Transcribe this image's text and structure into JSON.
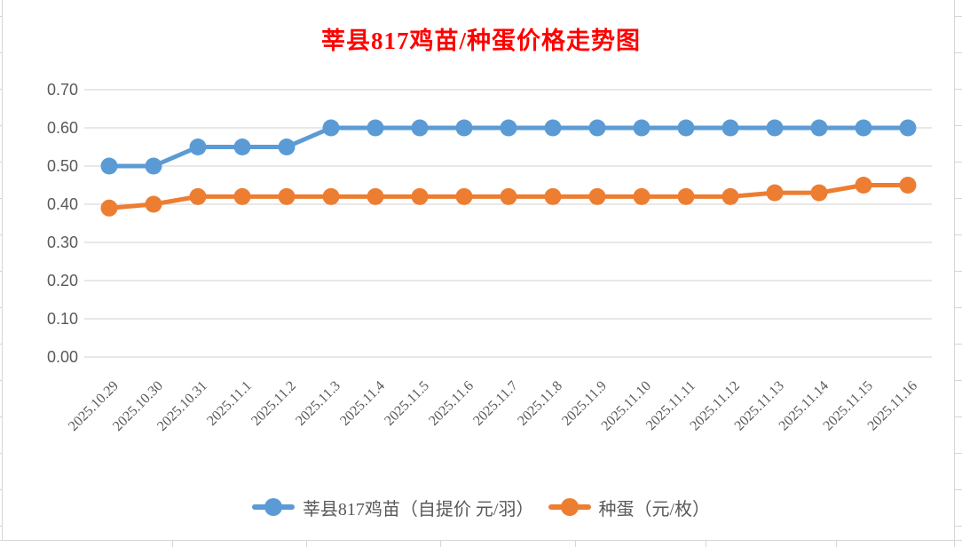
{
  "title": "莘县817鸡苗/种蛋价格走势图",
  "colors": {
    "title": "#FF0000",
    "axis_text": "#595959",
    "gridline": "#D9D9D9",
    "sheet_line": "#D6D6D6",
    "background": "#FFFFFF"
  },
  "chart_data": {
    "type": "line",
    "title": "莘县817鸡苗/种蛋价格走势图",
    "categories": [
      "2025.10.29",
      "2025.10.30",
      "2025.10.31",
      "2025.11.1",
      "2025.11.2",
      "2025.11.3",
      "2025.11.4",
      "2025.11.5",
      "2025.11.6",
      "2025.11.7",
      "2025.11.8",
      "2025.11.9",
      "2025.11.10",
      "2025.11.11",
      "2025.11.12",
      "2025.11.13",
      "2025.11.14",
      "2025.11.15",
      "2025.11.16"
    ],
    "series": [
      {
        "name": "莘县817鸡苗（自提价 元/羽）",
        "color": "#5B9BD5",
        "values": [
          0.5,
          0.5,
          0.55,
          0.55,
          0.55,
          0.6,
          0.6,
          0.6,
          0.6,
          0.6,
          0.6,
          0.6,
          0.6,
          0.6,
          0.6,
          0.6,
          0.6,
          0.6,
          0.6
        ]
      },
      {
        "name": "种蛋（元/枚）",
        "color": "#ED7D31",
        "values": [
          0.39,
          0.4,
          0.42,
          0.42,
          0.42,
          0.42,
          0.42,
          0.42,
          0.42,
          0.42,
          0.42,
          0.42,
          0.42,
          0.42,
          0.42,
          0.43,
          0.43,
          0.45,
          0.45
        ]
      }
    ],
    "ylim": [
      0.0,
      0.7
    ],
    "ytick_step": 0.1,
    "yticks": [
      "0.70",
      "0.60",
      "0.50",
      "0.40",
      "0.30",
      "0.20",
      "0.10",
      "0.00"
    ],
    "xlabel": "",
    "ylabel": "",
    "grid": true,
    "legend_position": "bottom",
    "marker": "circle"
  }
}
